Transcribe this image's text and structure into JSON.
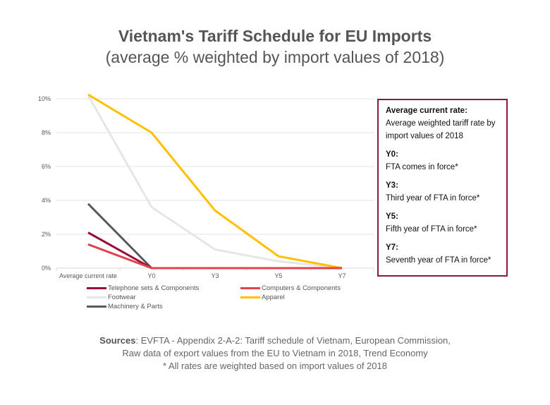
{
  "chart_data": {
    "type": "line",
    "title": "Vietnam's Tariff Schedule for EU Imports",
    "subtitle": "(average % weighted by import values of 2018)",
    "categories": [
      "Average current rate",
      "Y0",
      "Y3",
      "Y5",
      "Y7"
    ],
    "yticks": [
      "0%",
      "2%",
      "4%",
      "6%",
      "8%",
      "10%"
    ],
    "ylim": [
      0,
      10
    ],
    "grid": true,
    "legend_position": "bottom",
    "series": [
      {
        "name": "Telephone sets & Components",
        "color": "#9b0a35",
        "values": [
          2.1,
          0,
          0,
          0,
          0
        ]
      },
      {
        "name": "Computers & Components",
        "color": "#e0434b",
        "values": [
          1.4,
          0,
          0,
          0,
          0
        ]
      },
      {
        "name": "Footwear",
        "color": "#e6e6e6",
        "values": [
          10.2,
          3.6,
          1.1,
          0.4,
          0
        ]
      },
      {
        "name": "Apparel",
        "color": "#ffc000",
        "values": [
          10.25,
          8.0,
          3.4,
          0.7,
          0
        ]
      },
      {
        "name": "Machinery & Parts",
        "color": "#595959",
        "values": [
          3.8,
          0,
          0,
          0,
          0
        ]
      }
    ]
  },
  "notes": [
    {
      "heading": "Average current rate:",
      "text": "Average weighted tariff rate by import values of 2018"
    },
    {
      "heading": "Y0:",
      "text": "FTA comes in force*"
    },
    {
      "heading": "Y3:",
      "text": "Third year of FTA in force*"
    },
    {
      "heading": "Y5:",
      "text": "Fifth year of FTA in force*"
    },
    {
      "heading": "Y7:",
      "text": "Seventh year of FTA in force*"
    }
  ],
  "sources": {
    "label": "Sources",
    "line1": ": EVFTA - Appendix 2-A-2: Tariff schedule of Vietnam, European Commission,",
    "line2": "Raw data of export values from the EU to Vietnam in 2018, Trend Economy",
    "line3": "* All rates are weighted based on import values of 2018"
  }
}
